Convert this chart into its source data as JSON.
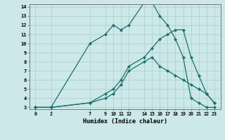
{
  "xlabel": "Humidex (Indice chaleur)",
  "background_color": "#cce8e8",
  "line_color": "#1a7070",
  "grid_color": "#aacccc",
  "x_ticks": [
    0,
    2,
    7,
    9,
    10,
    11,
    12,
    14,
    15,
    16,
    17,
    18,
    19,
    20,
    21,
    22,
    23
  ],
  "ylim": [
    3,
    14
  ],
  "yticks": [
    3,
    4,
    5,
    6,
    7,
    8,
    9,
    10,
    11,
    12,
    13,
    14
  ],
  "line1_x": [
    0,
    2,
    7,
    9,
    10,
    11,
    12,
    14,
    15,
    16,
    17,
    18,
    19,
    20,
    21,
    22,
    23
  ],
  "line1_y": [
    3,
    3,
    10,
    11,
    12,
    11.5,
    12,
    14.5,
    14.5,
    13.0,
    12.0,
    10.5,
    8.5,
    4.0,
    3.5,
    3.0,
    3.0
  ],
  "line2_x": [
    0,
    2,
    7,
    9,
    10,
    11,
    12,
    14,
    15,
    16,
    17,
    18,
    19,
    20,
    21,
    22,
    23
  ],
  "line2_y": [
    3,
    3,
    3.5,
    4.0,
    4.5,
    5.5,
    7.0,
    8.0,
    8.5,
    7.5,
    7.0,
    6.5,
    6.0,
    5.5,
    5.0,
    4.5,
    3.5
  ],
  "line3_x": [
    0,
    2,
    7,
    9,
    10,
    11,
    12,
    14,
    15,
    16,
    17,
    18,
    19,
    20,
    21,
    22,
    23
  ],
  "line3_y": [
    3,
    3,
    3.5,
    4.5,
    5.0,
    6.0,
    7.5,
    8.5,
    9.5,
    10.5,
    11.0,
    11.5,
    11.5,
    8.5,
    6.5,
    4.5,
    3.5
  ]
}
